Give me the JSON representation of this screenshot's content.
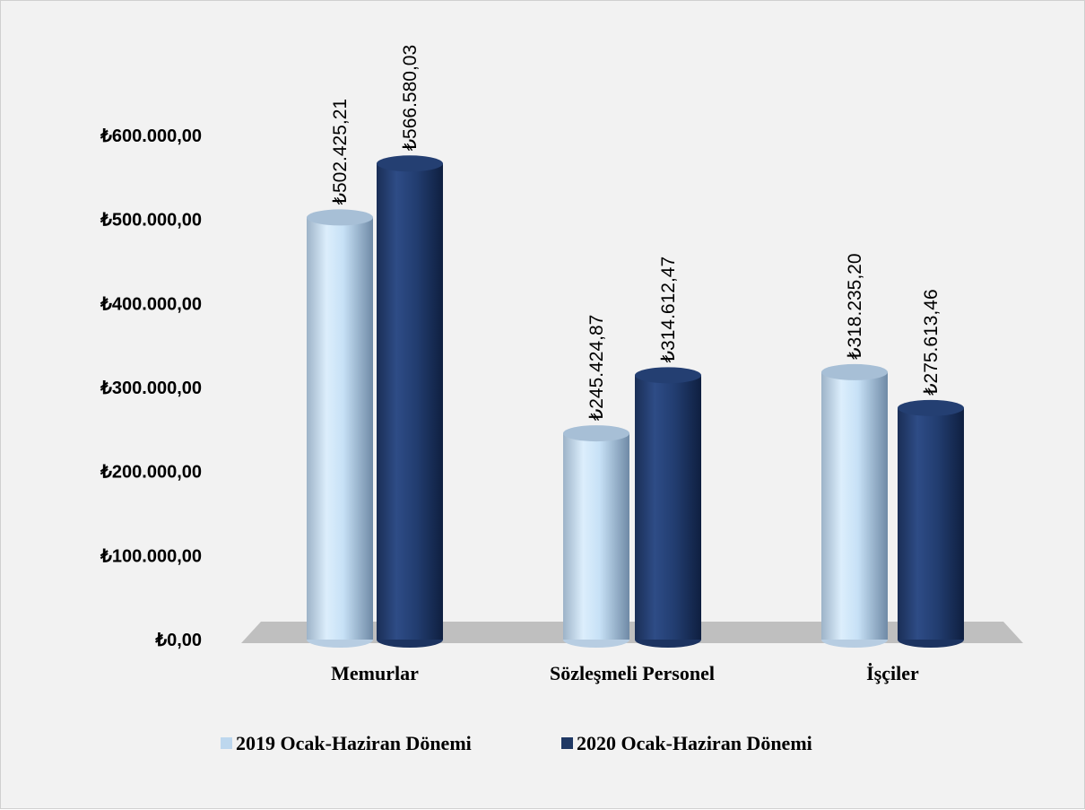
{
  "chart_data": {
    "type": "bar",
    "categories": [
      "Memurlar",
      "Sözleşmeli Personel",
      "İşçiler"
    ],
    "series": [
      {
        "name": "2019 Ocak-Haziran Dönemi",
        "values": [
          502425.21,
          245424.87,
          318235.2
        ],
        "labels": [
          "₺502.425,21",
          "₺245.424,87",
          "₺318.235,20"
        ]
      },
      {
        "name": "2020 Ocak-Haziran Dönemi",
        "values": [
          566580.03,
          314612.47,
          275613.46
        ],
        "labels": [
          "₺566.580,03",
          "₺314.612,47",
          "₺275.613,46"
        ]
      }
    ],
    "y_ticks": [
      0,
      100000,
      200000,
      300000,
      400000,
      500000,
      600000
    ],
    "y_tick_labels": [
      "₺0,00",
      "₺100.000,00",
      "₺200.000,00",
      "₺300.000,00",
      "₺400.000,00",
      "₺500.000,00",
      "₺600.000,00"
    ],
    "ylim": [
      0,
      600000
    ],
    "grid": false,
    "legend_position": "bottom",
    "style": "3d-cylinder",
    "colors": {
      "series_2019": "#bdd7ee",
      "series_2020": "#1f3864",
      "floor": "#bfbfbf",
      "background": "#f2f2f2"
    }
  }
}
